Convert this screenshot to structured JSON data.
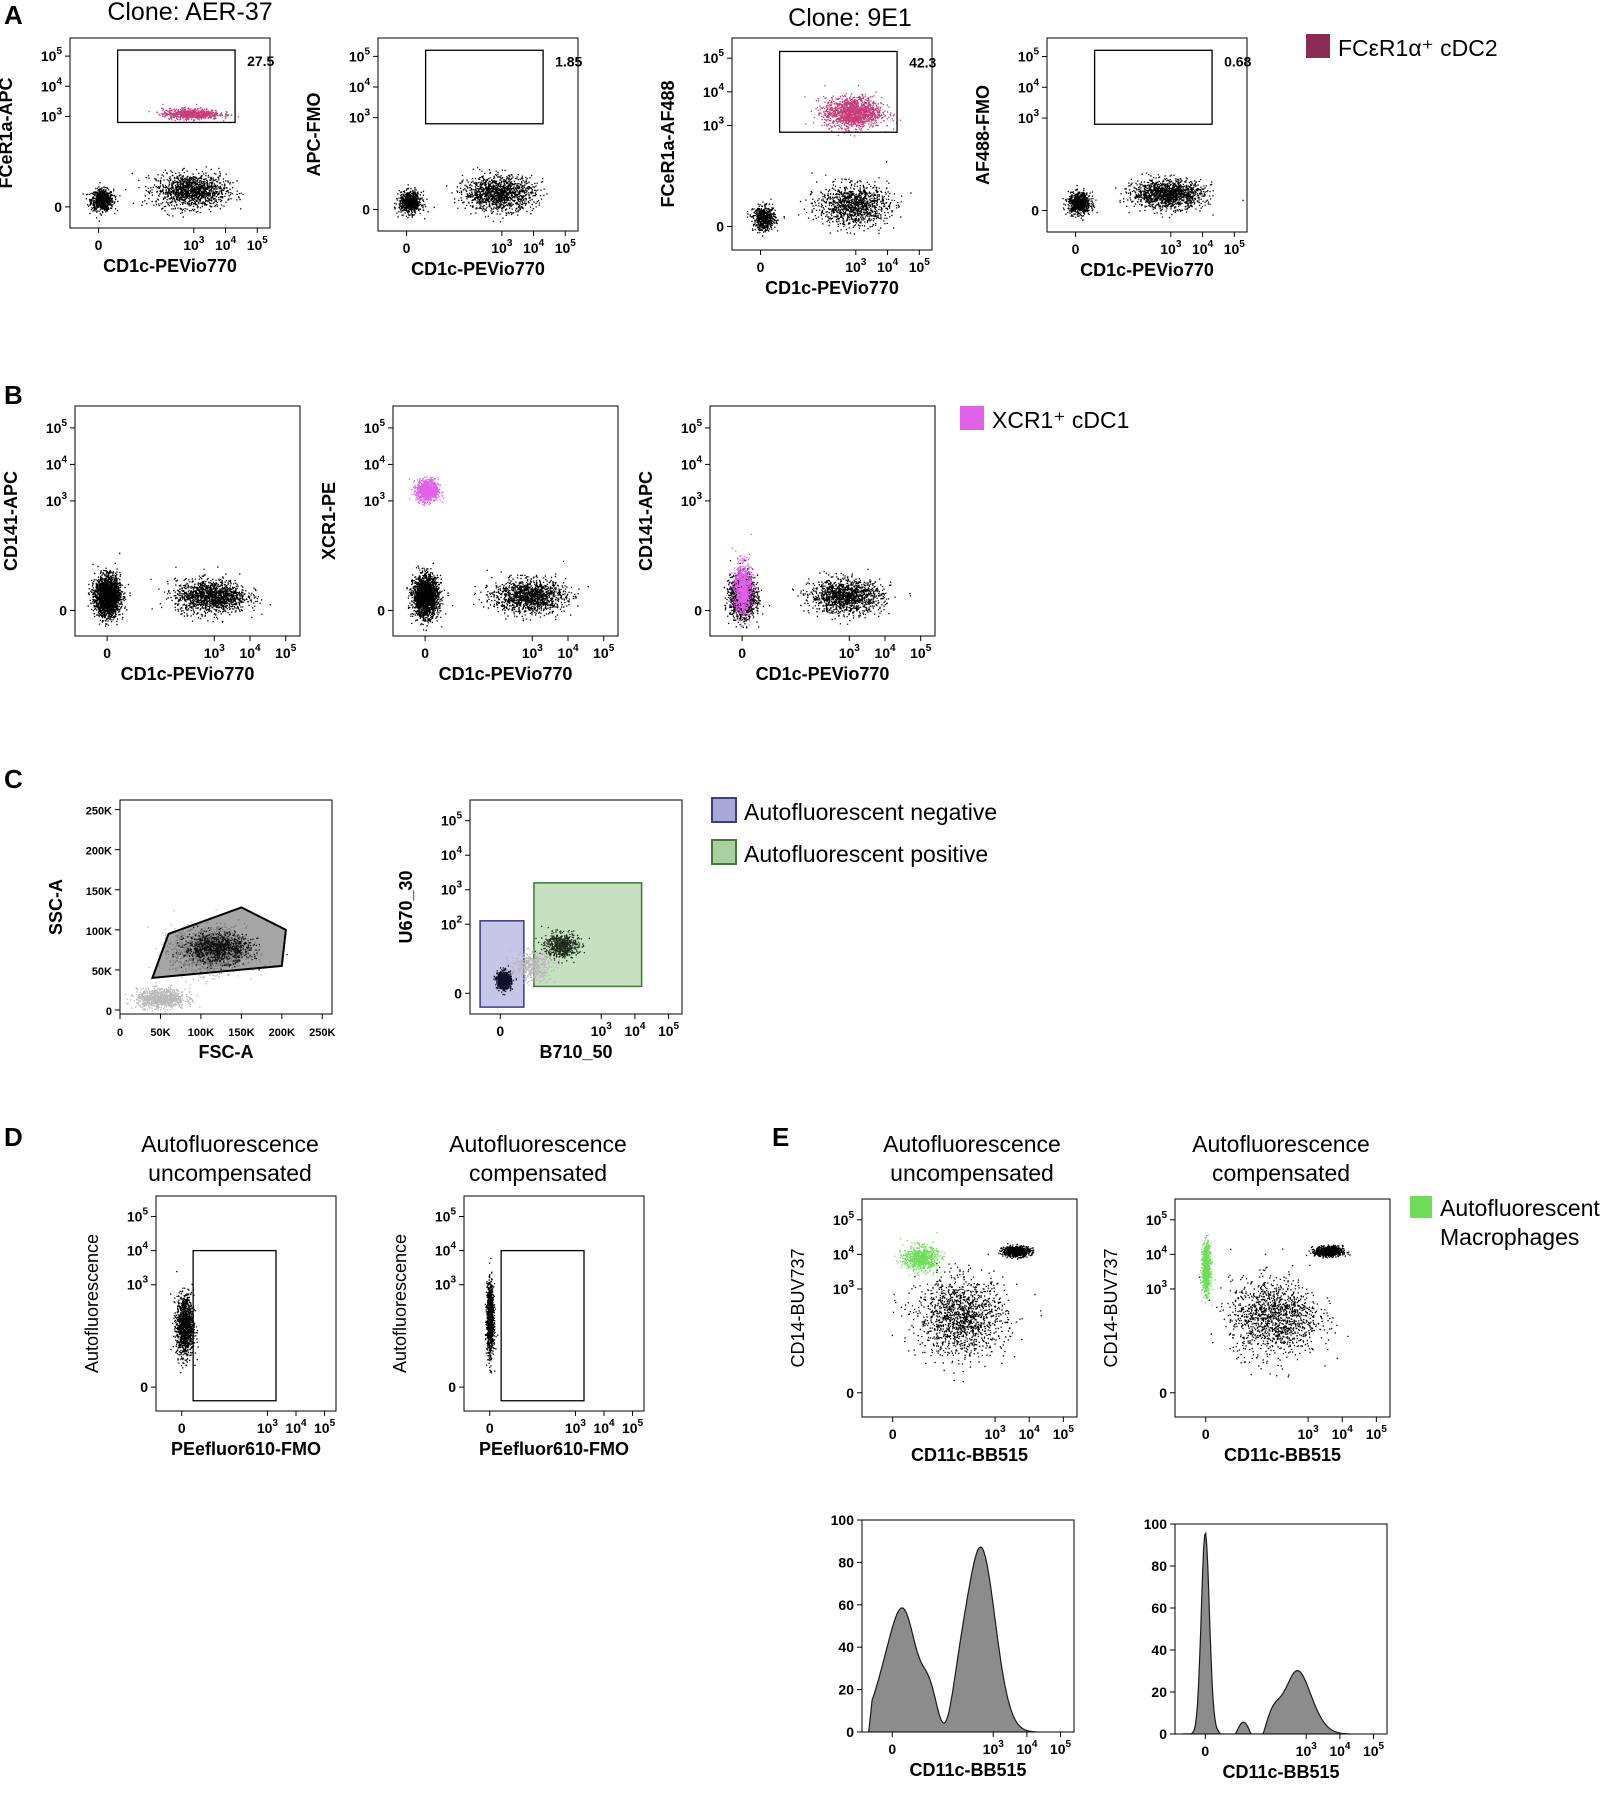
{
  "figure": {
    "panels": [
      {
        "letter": "A",
        "titles": [
          "Clone: AER-37",
          "Clone: 9E1"
        ]
      },
      {
        "letter": "B"
      },
      {
        "letter": "C"
      },
      {
        "letter": "D"
      },
      {
        "letter": "E"
      }
    ]
  },
  "legends": {
    "A": [
      {
        "label": "FCεR1α⁺ cDC2",
        "color": "#8b2d55"
      }
    ],
    "B": [
      {
        "label": "XCR1⁺ cDC1",
        "color": "#e060e8"
      }
    ],
    "C": [
      {
        "label": "Autofluorescent negative",
        "color": "#a8a8d8",
        "border": "#3b3b86"
      },
      {
        "label": "Autofluorescent positive",
        "color": "#a8d0a0",
        "border": "#3f7a36"
      }
    ],
    "E": [
      {
        "label": "Autofluorescent",
        "label2": "Macrophages",
        "color": "#6fdc5a"
      }
    ]
  },
  "chart_data": [
    {
      "id": "A1",
      "panel": "A",
      "type": "scatter",
      "xlabel": "CD1c-PEVio770",
      "ylabel": "FCeR1a-APC",
      "xticks": [
        "0",
        "10^3",
        "10^4",
        "10^5"
      ],
      "yticks": [
        "0",
        "10^3",
        "10^4",
        "10^5"
      ],
      "gate": {
        "label": "27.5",
        "x": [
          0.6,
          4.3
        ],
        "y": [
          2.8,
          5.2
        ]
      },
      "populations": [
        {
          "cx": 0.1,
          "cy": 0.25,
          "sx": 0.35,
          "sy": 0.35,
          "n": 750,
          "color": "#000000"
        },
        {
          "cx": 2.9,
          "cy": 0.55,
          "sx": 1.1,
          "sy": 0.55,
          "n": 1300,
          "color": "#000000"
        },
        {
          "cx": 2.9,
          "cy": 3.1,
          "sx": 0.9,
          "sy": 0.18,
          "n": 650,
          "color": "#c83c78"
        }
      ]
    },
    {
      "id": "A2",
      "panel": "A",
      "type": "scatter",
      "xlabel": "CD1c-PEVio770",
      "ylabel": "APC-FMO",
      "xticks": [
        "0",
        "10^3",
        "10^4",
        "10^5"
      ],
      "yticks": [
        "0",
        "10^3",
        "10^4",
        "10^5"
      ],
      "gate": {
        "label": "1.85",
        "x": [
          0.6,
          4.3
        ],
        "y": [
          2.8,
          5.2
        ]
      },
      "populations": [
        {
          "cx": 0.1,
          "cy": 0.25,
          "sx": 0.35,
          "sy": 0.35,
          "n": 700,
          "color": "#000000"
        },
        {
          "cx": 2.9,
          "cy": 0.55,
          "sx": 1.1,
          "sy": 0.55,
          "n": 1300,
          "color": "#000000"
        }
      ]
    },
    {
      "id": "A3",
      "panel": "A",
      "type": "scatter",
      "title": "Clone: 9E1",
      "xlabel": "CD1c-PEVio770",
      "ylabel": "FCeR1a-AF488",
      "xticks": [
        "0",
        "10^3",
        "10^4",
        "10^5"
      ],
      "yticks": [
        "0",
        "10^3",
        "10^4",
        "10^5"
      ],
      "gate": {
        "label": "42.3",
        "x": [
          0.6,
          4.3
        ],
        "y": [
          2.8,
          5.2
        ]
      },
      "populations": [
        {
          "cx": 0.1,
          "cy": 0.25,
          "sx": 0.35,
          "sy": 0.35,
          "n": 550,
          "color": "#000000"
        },
        {
          "cx": 2.9,
          "cy": 0.65,
          "sx": 1.1,
          "sy": 0.6,
          "n": 1100,
          "color": "#000000"
        },
        {
          "cx": 2.9,
          "cy": 3.4,
          "sx": 0.9,
          "sy": 0.45,
          "n": 1400,
          "color": "#c83c78"
        }
      ]
    },
    {
      "id": "A4",
      "panel": "A",
      "type": "scatter",
      "xlabel": "CD1c-PEVio770",
      "ylabel": "AF488-FMO",
      "xticks": [
        "0",
        "10^3",
        "10^4",
        "10^5"
      ],
      "yticks": [
        "0",
        "10^3",
        "10^4",
        "10^5"
      ],
      "gate": {
        "label": "0.68",
        "x": [
          0.6,
          4.3
        ],
        "y": [
          2.8,
          5.2
        ]
      },
      "populations": [
        {
          "cx": 0.1,
          "cy": 0.25,
          "sx": 0.35,
          "sy": 0.35,
          "n": 700,
          "color": "#000000"
        },
        {
          "cx": 2.9,
          "cy": 0.55,
          "sx": 1.1,
          "sy": 0.45,
          "n": 1400,
          "color": "#000000"
        }
      ]
    },
    {
      "id": "B1",
      "panel": "B",
      "type": "scatter",
      "xlabel": "CD1c-PEVio770",
      "ylabel": "CD141-APC",
      "xticks": [
        "0",
        "10^3",
        "10^4",
        "10^5"
      ],
      "yticks": [
        "0",
        "10^3",
        "10^4",
        "10^5"
      ],
      "populations": [
        {
          "cx": 0.0,
          "cy": 0.4,
          "sx": 0.35,
          "sy": 0.55,
          "n": 2200,
          "color": "#000000"
        },
        {
          "cx": 2.9,
          "cy": 0.4,
          "sx": 1.0,
          "sy": 0.45,
          "n": 1400,
          "color": "#000000"
        }
      ]
    },
    {
      "id": "B2",
      "panel": "B",
      "type": "scatter",
      "xlabel": "CD1c-PEVio770",
      "ylabel": "XCR1-PE",
      "xticks": [
        "0",
        "10^3",
        "10^4",
        "10^5"
      ],
      "yticks": [
        "0",
        "10^3",
        "10^4",
        "10^5"
      ],
      "populations": [
        {
          "cx": 0.0,
          "cy": 0.4,
          "sx": 0.35,
          "sy": 0.55,
          "n": 2000,
          "color": "#000000"
        },
        {
          "cx": 2.9,
          "cy": 0.4,
          "sx": 1.0,
          "sy": 0.45,
          "n": 1300,
          "color": "#000000"
        },
        {
          "cx": 0.05,
          "cy": 3.3,
          "sx": 0.3,
          "sy": 0.3,
          "n": 900,
          "color": "#e060e8"
        }
      ]
    },
    {
      "id": "B3",
      "panel": "B",
      "type": "scatter",
      "xlabel": "CD1c-PEVio770",
      "ylabel": "CD141-APC",
      "xticks": [
        "0",
        "10^3",
        "10^4",
        "10^5"
      ],
      "yticks": [
        "0",
        "10^3",
        "10^4",
        "10^5"
      ],
      "populations": [
        {
          "cx": 0.0,
          "cy": 0.4,
          "sx": 0.35,
          "sy": 0.55,
          "n": 1800,
          "color": "#000000"
        },
        {
          "cx": 2.9,
          "cy": 0.4,
          "sx": 1.0,
          "sy": 0.45,
          "n": 1300,
          "color": "#000000"
        },
        {
          "cx": 0.0,
          "cy": 0.6,
          "sx": 0.25,
          "sy": 0.7,
          "n": 900,
          "color": "#e060e8"
        }
      ]
    },
    {
      "id": "C1",
      "panel": "C",
      "type": "scatter",
      "xlabel": "FSC-A",
      "ylabel": "SSC-A",
      "xticks": [
        "0",
        "50K",
        "100K",
        "150K",
        "200K",
        "250K"
      ],
      "yticks": [
        "0",
        "50K",
        "100K",
        "150K",
        "200K",
        "250K"
      ],
      "polygon": [
        [
          40000,
          40000
        ],
        [
          60000,
          95000
        ],
        [
          150000,
          128000
        ],
        [
          205000,
          100000
        ],
        [
          200000,
          55000
        ],
        [
          40000,
          40000
        ]
      ],
      "populations": [
        {
          "cx": 110000,
          "cy": 75000,
          "sx": 45000,
          "sy": 28000,
          "n": 1600,
          "color": "#b8b8b8"
        },
        {
          "cx": 50000,
          "cy": 15000,
          "sx": 30000,
          "sy": 12000,
          "n": 900,
          "color": "#b8b8b8"
        },
        {
          "cx": 120000,
          "cy": 78000,
          "sx": 40000,
          "sy": 18000,
          "n": 1000,
          "color": "#1c1c1c"
        }
      ]
    },
    {
      "id": "C2",
      "panel": "C",
      "type": "scatter",
      "xlabel": "B710_50",
      "ylabel": "U670_30",
      "xticks": [
        "0",
        "10^3",
        "10^4",
        "10^5"
      ],
      "yticks": [
        "0",
        "10^2",
        "10^3",
        "10^4",
        "10^5"
      ],
      "gates": [
        {
          "x": [
            -0.6,
            0.7
          ],
          "y": [
            -0.4,
            2.1
          ],
          "fill": "#a8a8d8",
          "stroke": "#3b3b86"
        },
        {
          "x": [
            1.0,
            4.2
          ],
          "y": [
            0.2,
            3.2
          ],
          "fill": "#a8d0a0",
          "stroke": "#3f7a36"
        }
      ],
      "populations": [
        {
          "cx": 0.1,
          "cy": 0.4,
          "sx": 0.2,
          "sy": 0.25,
          "n": 900,
          "color": "#10102a"
        },
        {
          "cx": 1.8,
          "cy": 1.4,
          "sx": 0.5,
          "sy": 0.35,
          "n": 600,
          "color": "#1d2a18"
        },
        {
          "cx": 0.9,
          "cy": 0.8,
          "sx": 0.6,
          "sy": 0.4,
          "n": 500,
          "color": "#b8b8b8"
        }
      ]
    },
    {
      "id": "D1",
      "panel": "D",
      "type": "scatter",
      "title": "Autofluorescence uncompensated",
      "xlabel": "PEefluor610-FMO",
      "ylabel": "Autofluorescence",
      "xticks": [
        "0",
        "10^3",
        "10^4",
        "10^5"
      ],
      "yticks": [
        "0",
        "10^3",
        "10^4",
        "10^5"
      ],
      "gate": {
        "label": "",
        "x": [
          0.4,
          3.3
        ],
        "y": [
          -0.4,
          4.0
        ]
      },
      "populations": [
        {
          "cx": 0.1,
          "cy": 1.8,
          "sx": 0.3,
          "sy": 0.9,
          "n": 1200,
          "color": "#000000"
        }
      ]
    },
    {
      "id": "D2",
      "panel": "D",
      "type": "scatter",
      "title": "Autofluorescence compensated",
      "xlabel": "PEefluor610-FMO",
      "ylabel": "Autofluorescence",
      "xticks": [
        "0",
        "10^3",
        "10^4",
        "10^5"
      ],
      "yticks": [
        "0",
        "10^3",
        "10^4",
        "10^5"
      ],
      "gate": {
        "label": "",
        "x": [
          0.4,
          3.3
        ],
        "y": [
          -0.4,
          4.0
        ]
      },
      "populations": [
        {
          "cx": 0.0,
          "cy": 2.0,
          "sx": 0.12,
          "sy": 1.0,
          "n": 1200,
          "color": "#000000"
        }
      ]
    },
    {
      "id": "E1",
      "panel": "E",
      "type": "scatter",
      "title": "Autofluorescence uncompensated",
      "xlabel": "CD11c-BB515",
      "ylabel": "CD14-BUV737",
      "xticks": [
        "0",
        "10^3",
        "10^4",
        "10^5"
      ],
      "yticks": [
        "0",
        "10^3",
        "10^4",
        "10^5"
      ],
      "populations": [
        {
          "cx": 3.6,
          "cy": 4.1,
          "sx": 0.4,
          "sy": 0.15,
          "n": 700,
          "color": "#000000"
        },
        {
          "cx": 2.0,
          "cy": 2.2,
          "sx": 1.3,
          "sy": 1.1,
          "n": 1400,
          "color": "#000000"
        },
        {
          "cx": 0.8,
          "cy": 3.9,
          "sx": 0.5,
          "sy": 0.35,
          "n": 700,
          "color": "#6fdc5a"
        }
      ]
    },
    {
      "id": "E2",
      "panel": "E",
      "type": "scatter",
      "title": "Autofluorescence compensated",
      "xlabel": "CD11c-BB515",
      "ylabel": "CD14-BUV737",
      "xticks": [
        "0",
        "10^3",
        "10^4",
        "10^5"
      ],
      "yticks": [
        "0",
        "10^3",
        "10^4",
        "10^5"
      ],
      "populations": [
        {
          "cx": 3.6,
          "cy": 4.1,
          "sx": 0.4,
          "sy": 0.15,
          "n": 700,
          "color": "#000000"
        },
        {
          "cx": 2.0,
          "cy": 2.2,
          "sx": 1.3,
          "sy": 1.1,
          "n": 1300,
          "color": "#000000"
        },
        {
          "cx": 0.0,
          "cy": 3.6,
          "sx": 0.12,
          "sy": 0.7,
          "n": 800,
          "color": "#6fdc5a"
        }
      ]
    },
    {
      "id": "E3",
      "panel": "E",
      "type": "area",
      "xlabel": "CD11c-BB515",
      "ylabel": "",
      "xticks": [
        "0",
        "10^3",
        "10^4",
        "10^5"
      ],
      "yticks": [
        "0",
        "20",
        "40",
        "60",
        "80",
        "100"
      ],
      "ylim": [
        0,
        100
      ],
      "peaks": [
        {
          "x": 0.3,
          "h": 57,
          "w": 0.55
        },
        {
          "x": 2.6,
          "h": 88,
          "w": 0.45
        }
      ]
    },
    {
      "id": "E4",
      "panel": "E",
      "type": "area",
      "xlabel": "CD11c-BB515",
      "ylabel": "",
      "xticks": [
        "0",
        "10^3",
        "10^4",
        "10^5"
      ],
      "yticks": [
        "0",
        "20",
        "40",
        "60",
        "80",
        "100"
      ],
      "ylim": [
        0,
        100
      ],
      "peaks": [
        {
          "x": 0.0,
          "h": 96,
          "w": 0.12
        },
        {
          "x": 2.7,
          "h": 30,
          "w": 0.45
        }
      ]
    }
  ]
}
